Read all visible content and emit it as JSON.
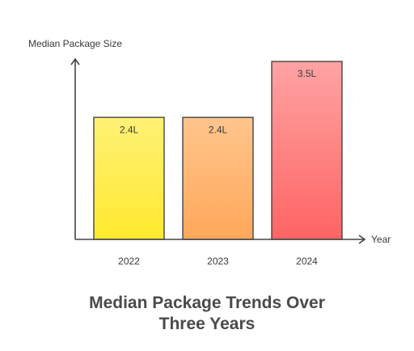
{
  "chart_data": {
    "type": "bar",
    "title": "Median Package Trends Over Three Years",
    "y_label": "Median Package Size",
    "x_label": "Year",
    "categories": [
      "2022",
      "2023",
      "2024"
    ],
    "values": [
      2.4,
      2.4,
      3.5
    ],
    "value_labels": [
      "2.4L",
      "2.4L",
      "3.5L"
    ],
    "colors": [
      {
        "top": "#fff176",
        "bottom": "#ffe92e"
      },
      {
        "top": "#ffc58c",
        "bottom": "#ffa85a"
      },
      {
        "top": "#ffa3a3",
        "bottom": "#ff6464"
      }
    ],
    "ylim": [
      0,
      3.5
    ]
  }
}
